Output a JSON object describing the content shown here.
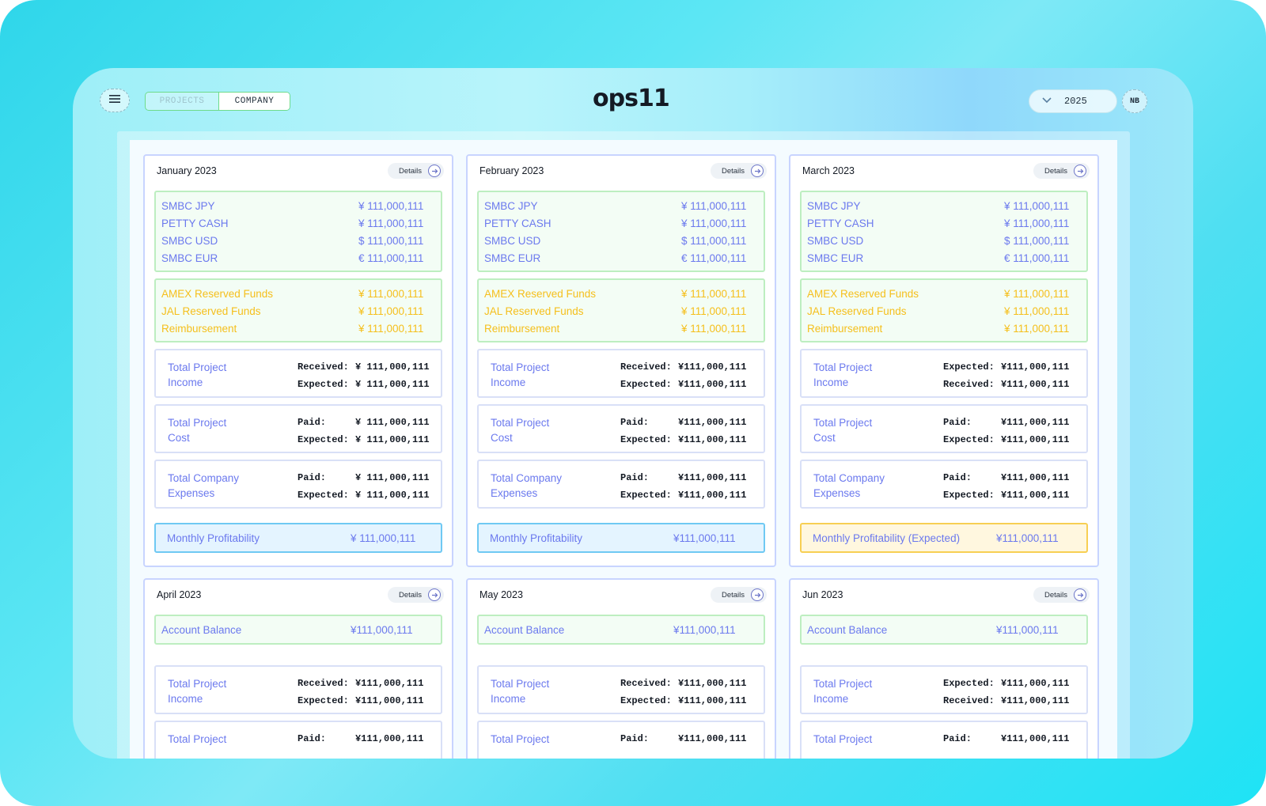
{
  "header": {
    "tabs": [
      {
        "label": "PROJECTS",
        "active": false
      },
      {
        "label": "COMPANY",
        "active": true
      }
    ],
    "logo": "ops11",
    "year": "2025",
    "avatar": "NB"
  },
  "colors": {
    "accent_text": "#6b79ee",
    "reserved_text": "#f5bf1c",
    "green_border": "#bdeec0",
    "blue_border": "#6fc9f3",
    "yellow_border": "#f7cf53"
  },
  "details_label": "Details",
  "cards_top": [
    {
      "title": "January 2023",
      "accounts": [
        {
          "name": "SMBC JPY",
          "amount": "¥ 111,000,111"
        },
        {
          "name": "PETTY CASH",
          "amount": "¥ 111,000,111"
        },
        {
          "name": "SMBC USD",
          "amount": "$ 111,000,111"
        },
        {
          "name": "SMBC EUR",
          "amount": "€ 111,000,111"
        }
      ],
      "reserved": [
        {
          "name": "AMEX Reserved Funds",
          "amount": "¥ 111,000,111"
        },
        {
          "name": "JAL Reserved Funds",
          "amount": "¥ 111,000,111"
        },
        {
          "name": "Reimbursement",
          "amount": "¥ 111,000,111"
        }
      ],
      "stats": [
        {
          "label1": "Total Project",
          "label2": "Income",
          "r1k": "Received:",
          "r1v": "¥ 111,000,111",
          "r2k": "Expected:",
          "r2v": "¥ 111,000,111"
        },
        {
          "label1": "Total Project",
          "label2": "Cost",
          "r1k": "Paid:",
          "r1v": "¥ 111,000,111",
          "r2k": "Expected:",
          "r2v": "¥ 111,000,111"
        },
        {
          "label1": "Total Company",
          "label2": "Expenses",
          "r1k": "Paid:",
          "r1v": "¥ 111,000,111",
          "r2k": "Expected:",
          "r2v": "¥ 111,000,111"
        }
      ],
      "profit_label": "Monthly Profitability",
      "profit_amount": "¥ 111,000,111"
    },
    {
      "title": "February 2023",
      "accounts": [
        {
          "name": "SMBC JPY",
          "amount": "¥ 111,000,111"
        },
        {
          "name": "PETTY CASH",
          "amount": "¥ 111,000,111"
        },
        {
          "name": "SMBC USD",
          "amount": "$ 111,000,111"
        },
        {
          "name": "SMBC EUR",
          "amount": "€ 111,000,111"
        }
      ],
      "reserved": [
        {
          "name": "AMEX Reserved Funds",
          "amount": "¥ 111,000,111"
        },
        {
          "name": "JAL Reserved Funds",
          "amount": "¥ 111,000,111"
        },
        {
          "name": "Reimbursement",
          "amount": "¥ 111,000,111"
        }
      ],
      "stats": [
        {
          "label1": "Total Project",
          "label2": "Income",
          "r1k": "Received:",
          "r1v": "¥111,000,111",
          "r2k": "Expected:",
          "r2v": "¥111,000,111"
        },
        {
          "label1": "Total Project",
          "label2": "Cost",
          "r1k": "Paid:",
          "r1v": "¥111,000,111",
          "r2k": "Expected:",
          "r2v": "¥111,000,111"
        },
        {
          "label1": "Total Company",
          "label2": "Expenses",
          "r1k": "Paid:",
          "r1v": "¥111,000,111",
          "r2k": "Expected:",
          "r2v": "¥111,000,111"
        }
      ],
      "profit_label": "Monthly Profitability",
      "profit_amount": "¥111,000,111"
    },
    {
      "title": "March 2023",
      "accounts": [
        {
          "name": "SMBC JPY",
          "amount": "¥ 111,000,111"
        },
        {
          "name": "PETTY CASH",
          "amount": "¥ 111,000,111"
        },
        {
          "name": "SMBC USD",
          "amount": "$ 111,000,111"
        },
        {
          "name": "SMBC EUR",
          "amount": "€ 111,000,111"
        }
      ],
      "reserved": [
        {
          "name": "AMEX Reserved Funds",
          "amount": "¥ 111,000,111"
        },
        {
          "name": "JAL Reserved Funds",
          "amount": "¥ 111,000,111"
        },
        {
          "name": "Reimbursement",
          "amount": "¥ 111,000,111"
        }
      ],
      "stats": [
        {
          "label1": "Total Project",
          "label2": "Income",
          "r1k": "Expected:",
          "r1v": "¥111,000,111",
          "r2k": "Received:",
          "r2v": "¥111,000,111"
        },
        {
          "label1": "Total Project",
          "label2": "Cost",
          "r1k": "Paid:",
          "r1v": "¥111,000,111",
          "r2k": "Expected:",
          "r2v": "¥111,000,111"
        },
        {
          "label1": "Total Company",
          "label2": "Expenses",
          "r1k": "Paid:",
          "r1v": "¥111,000,111",
          "r2k": "Expected:",
          "r2v": "¥111,000,111"
        }
      ],
      "profit_label": "Monthly Profitability (Expected)",
      "profit_amount": "¥111,000,111"
    }
  ],
  "cards_bottom": [
    {
      "title": "April 2023",
      "account_balance_label": "Account Balance",
      "account_balance": "¥111,000,111",
      "stats": [
        {
          "label1": "Total Project",
          "label2": "Income",
          "r1k": "Received:",
          "r1v": "¥111,000,111",
          "r2k": "Expected:",
          "r2v": "¥111,000,111"
        },
        {
          "label1": "Total Project",
          "r1k": "Paid:",
          "r1v": "¥111,000,111"
        }
      ]
    },
    {
      "title": "May 2023",
      "account_balance_label": "Account Balance",
      "account_balance": "¥111,000,111",
      "stats": [
        {
          "label1": "Total Project",
          "label2": "Income",
          "r1k": "Received:",
          "r1v": "¥111,000,111",
          "r2k": "Expected:",
          "r2v": "¥111,000,111"
        },
        {
          "label1": "Total Project",
          "r1k": "Paid:",
          "r1v": "¥111,000,111"
        }
      ]
    },
    {
      "title": "Jun 2023",
      "account_balance_label": "Account Balance",
      "account_balance": "¥111,000,111",
      "stats": [
        {
          "label1": "Total Project",
          "label2": "Income",
          "r1k": "Expected:",
          "r1v": "¥111,000,111",
          "r2k": "Received:",
          "r2v": "¥111,000,111"
        },
        {
          "label1": "Total Project",
          "r1k": "Paid:",
          "r1v": "¥111,000,111"
        }
      ]
    }
  ]
}
